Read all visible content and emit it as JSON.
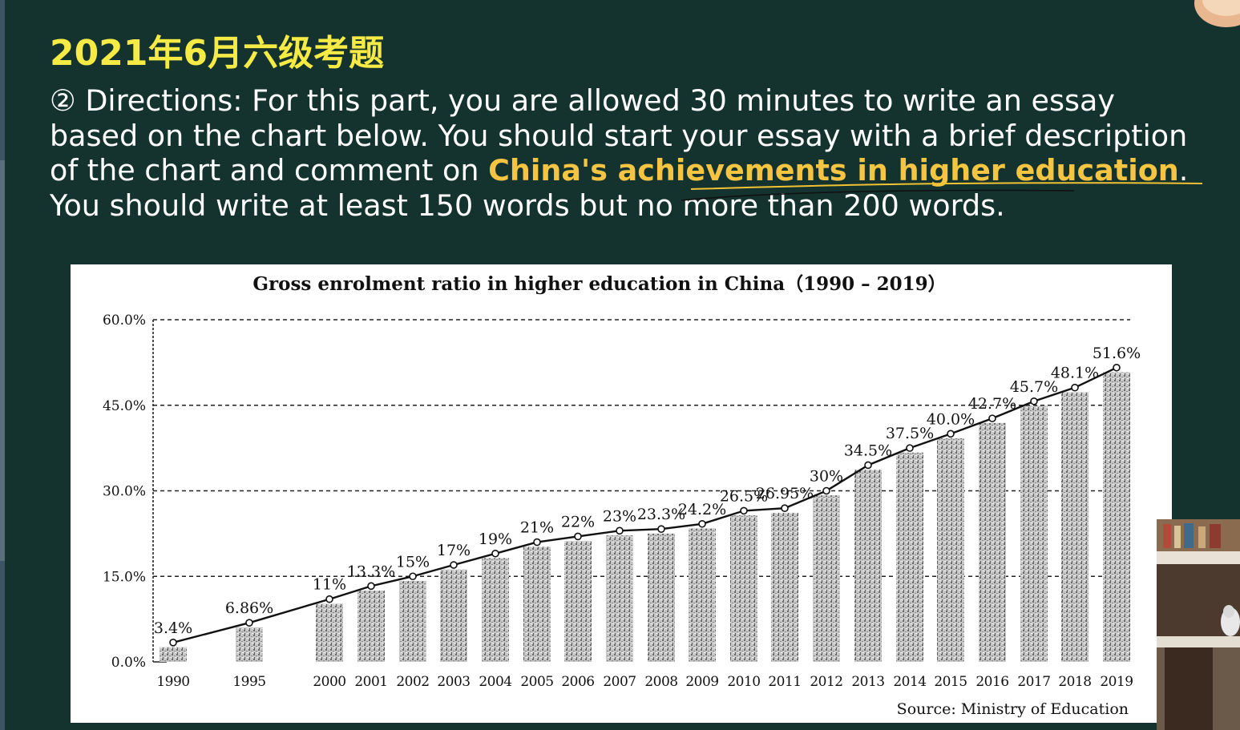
{
  "slide": {
    "title": "2021年6月六级考题",
    "directions_prefix": "② Directions: For this part, you are allowed 30 minutes to write an essay based on the chart below. You should start your essay with a brief description of the chart and comment on ",
    "directions_highlight": "China's achievements in higher education",
    "directions_suffix": ". You should write at least 150 words but no more than 200 words."
  },
  "colors": {
    "background": "#14332f",
    "title": "#f6ea45",
    "highlight": "#f5c542",
    "text": "#ffffff",
    "annotation_line": "#f1c232",
    "bar_fill": "#b5b5b5"
  },
  "chart_data": {
    "type": "bar",
    "title": "Gross enrolment ratio in higher education in China（1990 – 2019）",
    "source": "Source: Ministry of Education",
    "categories": [
      "1990",
      "1995",
      "2000",
      "2001",
      "2002",
      "2003",
      "2004",
      "2005",
      "2006",
      "2007",
      "2008",
      "2009",
      "2010",
      "2011",
      "2012",
      "2013",
      "2014",
      "2015",
      "2016",
      "2017",
      "2018",
      "2019"
    ],
    "values": [
      3.4,
      6.86,
      11,
      13.3,
      15,
      17,
      19,
      21,
      22,
      23,
      23.3,
      24.2,
      26.5,
      26.95,
      30,
      34.5,
      37.5,
      40.0,
      42.7,
      45.7,
      48.1,
      51.6
    ],
    "data_labels": [
      "3.4%",
      "6.86%",
      "11%",
      "13.3%",
      "15%",
      "17%",
      "19%",
      "21%",
      "22%",
      "23%",
      "23.3%",
      "24.2%",
      "26.5%",
      "26.95%",
      "30%",
      "34.5%",
      "37.5%",
      "40.0%",
      "42.7%",
      "45.7%",
      "48.1%",
      "51.6%"
    ],
    "y_ticks": [
      "0.0%",
      "15.0%",
      "30.0%",
      "45.0%",
      "60.0%"
    ],
    "ylim": [
      0,
      60
    ],
    "overlay": "line",
    "grid": "dashed horizontal"
  }
}
